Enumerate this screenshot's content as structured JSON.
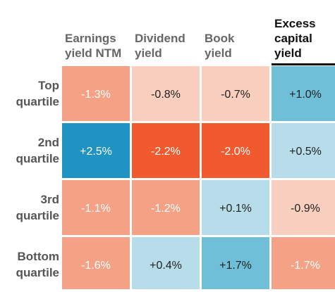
{
  "chart_data": {
    "type": "heatmap",
    "columns": [
      {
        "label": [
          "Earnings",
          "yield NTM"
        ],
        "emphasis": false
      },
      {
        "label": [
          "Dividend",
          "yield"
        ],
        "emphasis": false
      },
      {
        "label": [
          "Book",
          "yield"
        ],
        "emphasis": false
      },
      {
        "label": [
          "Excess",
          "capital",
          "yield"
        ],
        "emphasis": true
      }
    ],
    "rows": [
      {
        "label": [
          "Top",
          "quartile"
        ]
      },
      {
        "label": [
          "2nd",
          "quartile"
        ]
      },
      {
        "label": [
          "3rd",
          "quartile"
        ]
      },
      {
        "label": [
          "Bottom",
          "quartile"
        ]
      }
    ],
    "values": [
      [
        -1.3,
        -0.8,
        -0.7,
        1.0
      ],
      [
        2.5,
        -2.2,
        -2.0,
        0.5
      ],
      [
        -1.1,
        -1.2,
        0.1,
        -0.9
      ],
      [
        -1.6,
        0.4,
        1.7,
        -1.7
      ]
    ],
    "display": [
      [
        "-1.3%",
        "-0.8%",
        "-0.7%",
        "+1.0%"
      ],
      [
        "+2.5%",
        "-2.2%",
        "-2.0%",
        "+0.5%"
      ],
      [
        "-1.1%",
        "-1.2%",
        "+0.1%",
        "-0.9%"
      ],
      [
        "-1.6%",
        "+0.4%",
        "+1.7%",
        "-1.7%"
      ]
    ],
    "colors": {
      "strong_negative": "#f15a2e",
      "negative": "#f5a185",
      "weak_negative": "#f9cfbf",
      "weak_positive": "#b6dde9",
      "positive": "#70bfd8",
      "strong_positive": "#1f93c2",
      "text_dark": "#222222",
      "text_light": "#ffffff"
    }
  }
}
